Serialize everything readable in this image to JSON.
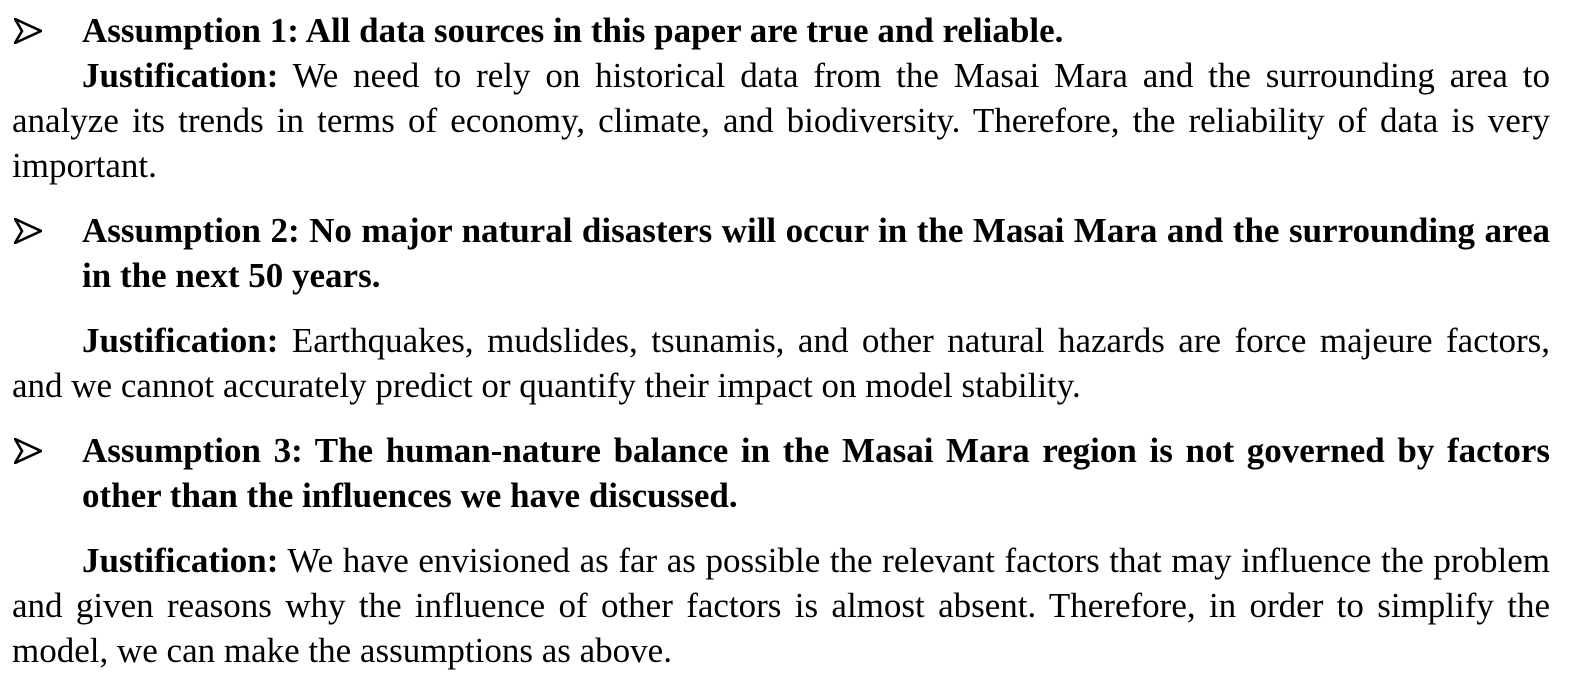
{
  "items": [
    {
      "assumption": "Assumption 1: All data sources in this paper are true and reliable.",
      "justification_label": "Justification:",
      "justification_text": " We need to rely on historical data from the Masai Mara and the surrounding area to analyze its trends in terms of economy, climate, and biodiversity. Therefore, the reliability of data is very important."
    },
    {
      "assumption": "Assumption 2: No major natural disasters will occur in the Masai Mara and the surrounding area in the next 50 years.",
      "justification_label": "Justification:",
      "justification_text": " Earthquakes, mudslides, tsunamis, and other natural hazards are force majeure factors, and we cannot accurately predict or quantify their impact on model stability."
    },
    {
      "assumption": "Assumption 3: The human-nature balance in the Masai Mara region is not governed by factors other than the influences we have discussed.",
      "justification_label": "Justification:",
      "justification_text": " We have envisioned as far as possible the relevant factors that may influence the problem and given reasons why the influence of other factors is almost absent. Therefore, in order to simplify the model, we can make the assumptions as above."
    }
  ]
}
